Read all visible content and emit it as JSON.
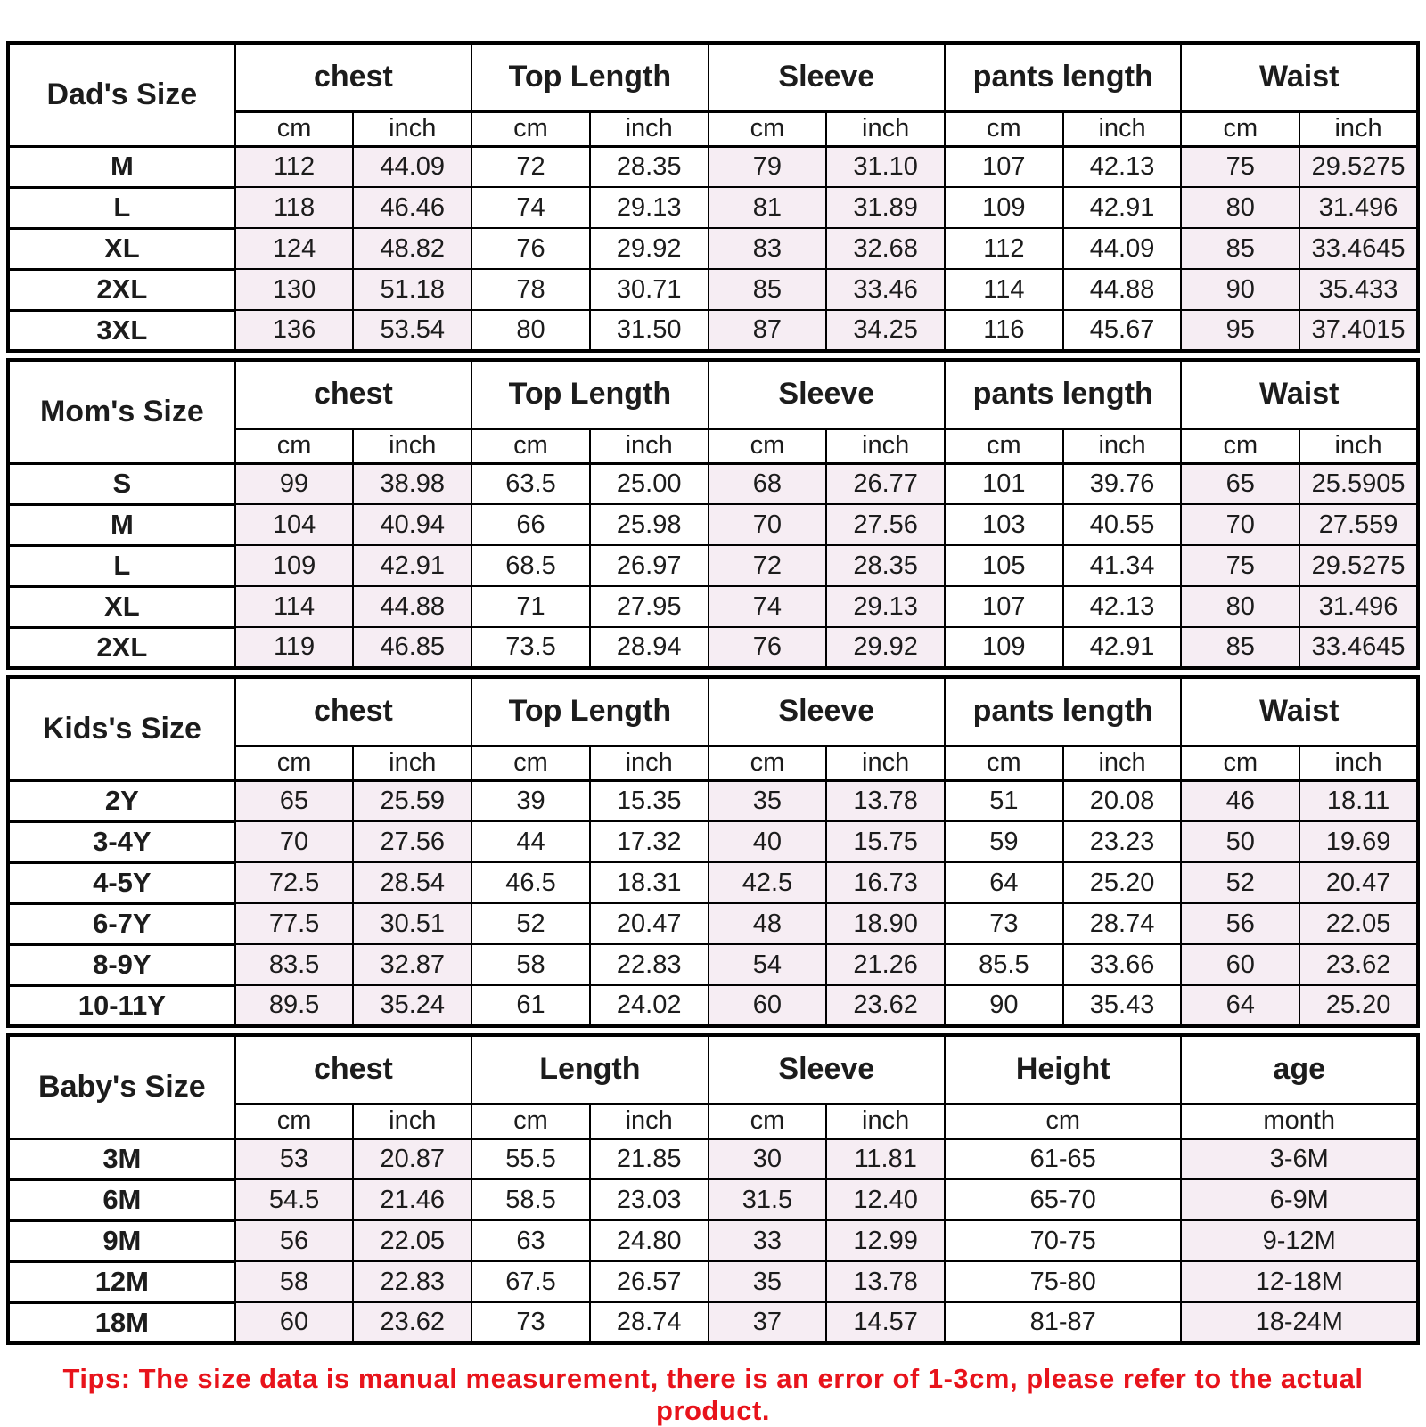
{
  "tips": "Tips: The size data is manual measurement, there is an error of 1-3cm, please refer to the actual product.",
  "colors": {
    "shade": "#f6edf3",
    "tip": "#e8131b",
    "border": "#000000",
    "text": "#1c1c1c"
  },
  "sections": [
    {
      "title": "Dad's Size",
      "groups": [
        {
          "label": "chest",
          "units": [
            "cm",
            "inch"
          ]
        },
        {
          "label": "Top Length",
          "units": [
            "cm",
            "inch"
          ]
        },
        {
          "label": "Sleeve",
          "units": [
            "cm",
            "inch"
          ]
        },
        {
          "label": "pants length",
          "units": [
            "cm",
            "inch"
          ]
        },
        {
          "label": "Waist",
          "units": [
            "cm",
            "inch"
          ]
        }
      ],
      "rows": [
        {
          "size": "M",
          "values": [
            "112",
            "44.09",
            "72",
            "28.35",
            "79",
            "31.10",
            "107",
            "42.13",
            "75",
            "29.5275"
          ]
        },
        {
          "size": "L",
          "values": [
            "118",
            "46.46",
            "74",
            "29.13",
            "81",
            "31.89",
            "109",
            "42.91",
            "80",
            "31.496"
          ]
        },
        {
          "size": "XL",
          "values": [
            "124",
            "48.82",
            "76",
            "29.92",
            "83",
            "32.68",
            "112",
            "44.09",
            "85",
            "33.4645"
          ]
        },
        {
          "size": "2XL",
          "values": [
            "130",
            "51.18",
            "78",
            "30.71",
            "85",
            "33.46",
            "114",
            "44.88",
            "90",
            "35.433"
          ]
        },
        {
          "size": "3XL",
          "values": [
            "136",
            "53.54",
            "80",
            "31.50",
            "87",
            "34.25",
            "116",
            "45.67",
            "95",
            "37.4015"
          ]
        }
      ]
    },
    {
      "title": "Mom's Size",
      "groups": [
        {
          "label": "chest",
          "units": [
            "cm",
            "inch"
          ]
        },
        {
          "label": "Top Length",
          "units": [
            "cm",
            "inch"
          ]
        },
        {
          "label": "Sleeve",
          "units": [
            "cm",
            "inch"
          ]
        },
        {
          "label": "pants length",
          "units": [
            "cm",
            "inch"
          ]
        },
        {
          "label": "Waist",
          "units": [
            "cm",
            "inch"
          ]
        }
      ],
      "rows": [
        {
          "size": "S",
          "values": [
            "99",
            "38.98",
            "63.5",
            "25.00",
            "68",
            "26.77",
            "101",
            "39.76",
            "65",
            "25.5905"
          ]
        },
        {
          "size": "M",
          "values": [
            "104",
            "40.94",
            "66",
            "25.98",
            "70",
            "27.56",
            "103",
            "40.55",
            "70",
            "27.559"
          ]
        },
        {
          "size": "L",
          "values": [
            "109",
            "42.91",
            "68.5",
            "26.97",
            "72",
            "28.35",
            "105",
            "41.34",
            "75",
            "29.5275"
          ]
        },
        {
          "size": "XL",
          "values": [
            "114",
            "44.88",
            "71",
            "27.95",
            "74",
            "29.13",
            "107",
            "42.13",
            "80",
            "31.496"
          ]
        },
        {
          "size": "2XL",
          "values": [
            "119",
            "46.85",
            "73.5",
            "28.94",
            "76",
            "29.92",
            "109",
            "42.91",
            "85",
            "33.4645"
          ]
        }
      ]
    },
    {
      "title": "Kids's Size",
      "groups": [
        {
          "label": "chest",
          "units": [
            "cm",
            "inch"
          ]
        },
        {
          "label": "Top Length",
          "units": [
            "cm",
            "inch"
          ]
        },
        {
          "label": "Sleeve",
          "units": [
            "cm",
            "inch"
          ]
        },
        {
          "label": "pants length",
          "units": [
            "cm",
            "inch"
          ]
        },
        {
          "label": "Waist",
          "units": [
            "cm",
            "inch"
          ]
        }
      ],
      "rows": [
        {
          "size": "2Y",
          "values": [
            "65",
            "25.59",
            "39",
            "15.35",
            "35",
            "13.78",
            "51",
            "20.08",
            "46",
            "18.11"
          ]
        },
        {
          "size": "3-4Y",
          "values": [
            "70",
            "27.56",
            "44",
            "17.32",
            "40",
            "15.75",
            "59",
            "23.23",
            "50",
            "19.69"
          ]
        },
        {
          "size": "4-5Y",
          "values": [
            "72.5",
            "28.54",
            "46.5",
            "18.31",
            "42.5",
            "16.73",
            "64",
            "25.20",
            "52",
            "20.47"
          ]
        },
        {
          "size": "6-7Y",
          "values": [
            "77.5",
            "30.51",
            "52",
            "20.47",
            "48",
            "18.90",
            "73",
            "28.74",
            "56",
            "22.05"
          ]
        },
        {
          "size": "8-9Y",
          "values": [
            "83.5",
            "32.87",
            "58",
            "22.83",
            "54",
            "21.26",
            "85.5",
            "33.66",
            "60",
            "23.62"
          ]
        },
        {
          "size": "10-11Y",
          "values": [
            "89.5",
            "35.24",
            "61",
            "24.02",
            "60",
            "23.62",
            "90",
            "35.43",
            "64",
            "25.20"
          ]
        }
      ]
    },
    {
      "title": "Baby's Size",
      "groups": [
        {
          "label": "chest",
          "units": [
            "cm",
            "inch"
          ]
        },
        {
          "label": "Length",
          "units": [
            "cm",
            "inch"
          ]
        },
        {
          "label": "Sleeve",
          "units": [
            "cm",
            "inch"
          ]
        },
        {
          "label": "Height",
          "units": [
            "cm"
          ],
          "span": 2
        },
        {
          "label": "age",
          "units": [
            "month"
          ],
          "span": 2
        }
      ],
      "rows": [
        {
          "size": "3M",
          "values": [
            "53",
            "20.87",
            "55.5",
            "21.85",
            "30",
            "11.81",
            "61-65",
            "3-6M"
          ]
        },
        {
          "size": "6M",
          "values": [
            "54.5",
            "21.46",
            "58.5",
            "23.03",
            "31.5",
            "12.40",
            "65-70",
            "6-9M"
          ]
        },
        {
          "size": "9M",
          "values": [
            "56",
            "22.05",
            "63",
            "24.80",
            "33",
            "12.99",
            "70-75",
            "9-12M"
          ]
        },
        {
          "size": "12M",
          "values": [
            "58",
            "22.83",
            "67.5",
            "26.57",
            "35",
            "13.78",
            "75-80",
            "12-18M"
          ]
        },
        {
          "size": "18M",
          "values": [
            "60",
            "23.62",
            "73",
            "28.74",
            "37",
            "14.57",
            "81-87",
            "18-24M"
          ]
        }
      ]
    }
  ]
}
